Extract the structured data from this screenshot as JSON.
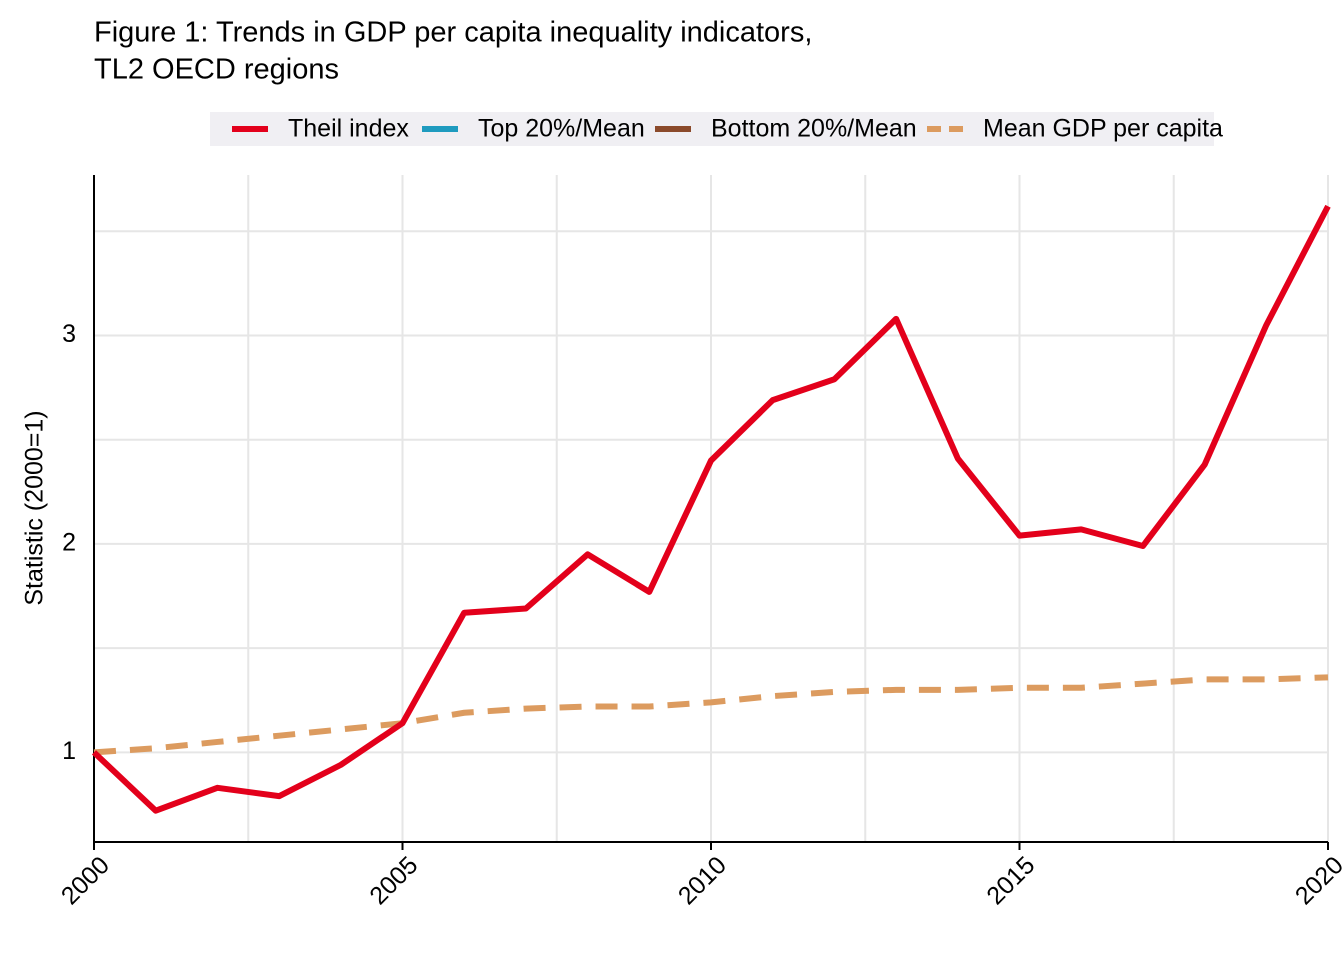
{
  "chart_data": {
    "type": "line",
    "title": [
      "Figure 1: Trends in GDP per capita inequality indicators,",
      "TL2 OECD regions"
    ],
    "y_label": "Statistic (2000=1)",
    "x": [
      2000,
      2001,
      2002,
      2003,
      2004,
      2005,
      2006,
      2007,
      2008,
      2009,
      2010,
      2011,
      2012,
      2013,
      2014,
      2015,
      2016,
      2017,
      2018,
      2019,
      2020
    ],
    "series": [
      {
        "name": "Theil index",
        "color": "#e3001b",
        "dash": "solid",
        "values": [
          1.0,
          0.72,
          0.83,
          0.79,
          0.94,
          1.14,
          1.67,
          1.69,
          1.95,
          1.77,
          2.4,
          2.69,
          2.79,
          3.08,
          2.41,
          2.04,
          2.07,
          1.99,
          2.38,
          3.05,
          3.62
        ]
      },
      {
        "name": "Top 20%/Mean",
        "color": "#1f9bbf",
        "dash": "solid",
        "values": [
          null,
          null,
          null,
          null,
          null,
          null,
          null,
          null,
          null,
          null,
          null,
          null,
          null,
          null,
          null,
          null,
          null,
          null,
          null,
          null,
          null
        ]
      },
      {
        "name": "Bottom 20%/Mean",
        "color": "#8b4a2b",
        "dash": "solid",
        "values": [
          null,
          null,
          null,
          null,
          null,
          null,
          null,
          null,
          null,
          null,
          null,
          null,
          null,
          null,
          null,
          null,
          null,
          null,
          null,
          null,
          null
        ]
      },
      {
        "name": "Mean GDP per capita",
        "color": "#dc9b5f",
        "dash": "dashed",
        "values": [
          1.0,
          1.02,
          1.05,
          1.08,
          1.11,
          1.14,
          1.19,
          1.21,
          1.22,
          1.22,
          1.24,
          1.27,
          1.29,
          1.3,
          1.3,
          1.31,
          1.31,
          1.33,
          1.35,
          1.35,
          1.36
        ]
      }
    ],
    "xlim": [
      2000,
      2020
    ],
    "xticks": [
      2000,
      2005,
      2010,
      2015,
      2020
    ],
    "ylim": [
      0.57,
      3.77
    ],
    "yticks": [
      1,
      2,
      3
    ],
    "x_minor_gridlines": [
      2002.5,
      2007.5,
      2012.5,
      2017.5
    ],
    "y_minor_gridlines": [
      1.5,
      2.5,
      3.5
    ],
    "grid": true,
    "legend": "top"
  }
}
